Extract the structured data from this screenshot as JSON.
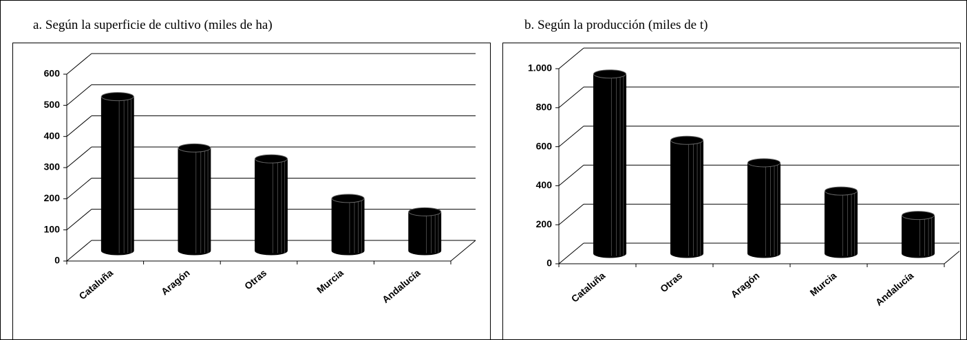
{
  "chart_data": [
    {
      "type": "bar3d",
      "title": "a.  Según la superficie de cultivo (miles de ha)",
      "categories": [
        "Cataluña",
        "Aragón",
        "Otras",
        "Murcia",
        "Andalucía"
      ],
      "values": [
        495,
        330,
        295,
        168,
        125
      ],
      "color": "#000000",
      "ylim": [
        0,
        600
      ],
      "yticks": [
        0,
        100,
        200,
        300,
        400,
        500,
        600
      ],
      "grid": true
    },
    {
      "type": "bar3d",
      "title": "b. Según la producción (miles de t)",
      "categories": [
        "Cataluña",
        "Otras",
        "Aragón",
        "Murcia",
        "Andalucía"
      ],
      "values": [
        920,
        580,
        465,
        320,
        195
      ],
      "color": "#000000",
      "ylim": [
        0,
        1000
      ],
      "yticks": [
        0,
        200,
        400,
        600,
        800,
        {
          "value": 1000,
          "label": "1.000"
        }
      ],
      "grid": true
    }
  ]
}
